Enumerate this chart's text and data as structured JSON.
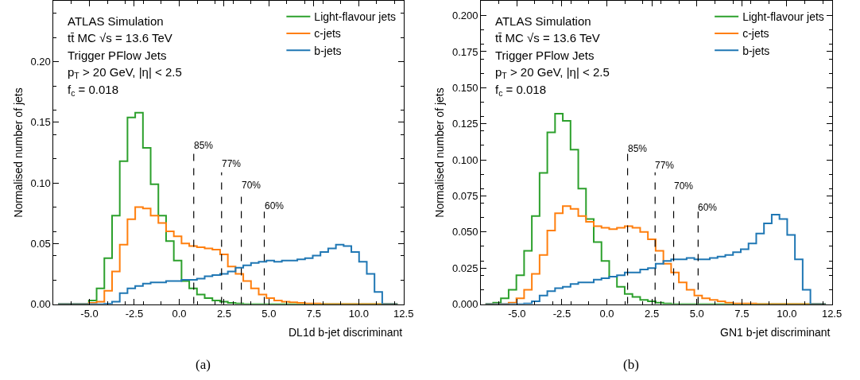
{
  "chart_data": [
    {
      "type": "histogram",
      "xlabel": "DL1d b-jet discriminant",
      "ylabel": "Normalised number of jets",
      "bins": [
        -6.75,
        -6.32,
        -5.89,
        -5.46,
        -5.03,
        -4.6,
        -4.17,
        -3.74,
        -3.31,
        -2.88,
        -2.45,
        -2.02,
        -1.59,
        -1.16,
        -0.73,
        -0.3,
        0.13,
        0.56,
        0.99,
        1.42,
        1.85,
        2.28,
        2.71,
        3.14,
        3.57,
        4.0,
        4.43,
        4.86,
        5.29,
        5.72,
        6.15,
        6.58,
        7.01,
        7.44,
        7.87,
        8.3,
        8.73,
        9.16,
        9.59,
        10.02,
        10.45,
        10.88,
        11.31,
        11.74,
        12.17
      ],
      "series": [
        {
          "name": "Light-flavour jets",
          "color": "#2ca02c",
          "values": [
            0,
            0,
            0,
            0,
            0.003,
            0.013,
            0.038,
            0.073,
            0.118,
            0.154,
            0.158,
            0.129,
            0.099,
            0.073,
            0.052,
            0.036,
            0.019,
            0.013,
            0.008,
            0.005,
            0.003,
            0.002,
            0.001,
            0.0005,
            0,
            0,
            0,
            0,
            0,
            0,
            0,
            0,
            0,
            0,
            0,
            0,
            0,
            0,
            0,
            0,
            0,
            0,
            0,
            0
          ]
        },
        {
          "name": "c-jets",
          "color": "#ff7f0e",
          "values": [
            0,
            0,
            0,
            0,
            0.001,
            0.002,
            0.011,
            0.027,
            0.049,
            0.07,
            0.08,
            0.079,
            0.073,
            0.067,
            0.06,
            0.056,
            0.05,
            0.048,
            0.047,
            0.046,
            0.045,
            0.041,
            0.031,
            0.025,
            0.019,
            0.013,
            0.008,
            0.005,
            0.003,
            0.002,
            0.0015,
            0.001,
            0.0005,
            0.0005,
            0,
            0,
            0,
            0,
            0,
            0,
            0,
            0,
            0,
            0
          ]
        },
        {
          "name": "b-jets",
          "color": "#1f77b4",
          "values": [
            0,
            0,
            0,
            0,
            0,
            0,
            0.0004,
            0.002,
            0.009,
            0.013,
            0.015,
            0.017,
            0.018,
            0.018,
            0.019,
            0.019,
            0.02,
            0.02,
            0.021,
            0.023,
            0.024,
            0.025,
            0.027,
            0.03,
            0.032,
            0.034,
            0.035,
            0.036,
            0.035,
            0.036,
            0.036,
            0.037,
            0.038,
            0.04,
            0.043,
            0.046,
            0.049,
            0.048,
            0.043,
            0.035,
            0.025,
            0.01,
            0,
            0
          ]
        }
      ],
      "xlim": [
        -7,
        12.5
      ],
      "ylim": [
        0,
        0.25
      ],
      "xticks": [
        {
          "value": -5,
          "label": "-5.0"
        },
        {
          "value": -2.5,
          "label": "-2.5"
        },
        {
          "value": 0,
          "label": "0.0"
        },
        {
          "value": 2.5,
          "label": "2.5"
        },
        {
          "value": 5,
          "label": "5.0"
        },
        {
          "value": 7.5,
          "label": "7.5"
        },
        {
          "value": 10,
          "label": "10.0"
        },
        {
          "value": 12.5,
          "label": "12.5"
        }
      ],
      "yticks": [
        {
          "value": 0,
          "label": "0.00"
        },
        0.05,
        {
          "value": 0.1,
          "label": "0.10"
        },
        0.15,
        {
          "value": 0.2,
          "label": "0.20"
        }
      ],
      "ref_lines": [
        {
          "axis": "x",
          "value": 0.81,
          "color": "#000000",
          "line_style": "dashed"
        },
        {
          "axis": "x",
          "value": 2.36,
          "color": "#000000",
          "line_style": "dashed"
        },
        {
          "axis": "x",
          "value": 3.46,
          "color": "#000000",
          "line_style": "dashed"
        },
        {
          "axis": "x",
          "value": 4.74,
          "color": "#000000",
          "line_style": "dashed"
        }
      ],
      "annotations": [
        "ATLAS Simulation",
        "tt̄ MC √s = 13.6 TeV",
        "Trigger PFlow Jets",
        "p$_{T}$ > 20 GeV, |η| < 2.5",
        "f$_{c}$ = 0.018",
        {
          "text": "85%",
          "x": 0.81,
          "y": 0.125
        },
        {
          "text": "77%",
          "x": 2.36,
          "y": 0.11
        },
        {
          "text": "70%",
          "x": 3.46,
          "y": 0.092
        },
        {
          "text": "60%",
          "x": 4.74,
          "y": 0.075
        },
        "(a)"
      ],
      "legend": "top right"
    },
    {
      "type": "histogram",
      "xlabel": "GN1 b-jet discriminant",
      "ylabel": "Normalised number of jets",
      "bins": [
        -6.75,
        -6.32,
        -5.89,
        -5.46,
        -5.03,
        -4.6,
        -4.17,
        -3.74,
        -3.31,
        -2.88,
        -2.45,
        -2.02,
        -1.59,
        -1.16,
        -0.73,
        -0.3,
        0.13,
        0.56,
        0.99,
        1.42,
        1.85,
        2.28,
        2.71,
        3.14,
        3.57,
        4.0,
        4.43,
        4.86,
        5.29,
        5.72,
        6.15,
        6.58,
        7.01,
        7.44,
        7.87,
        8.3,
        8.73,
        9.16,
        9.59,
        10.02,
        10.45,
        10.88,
        11.31,
        11.74,
        12.17
      ],
      "series": [
        {
          "name": "Light-flavour jets",
          "color": "#2ca02c",
          "values": [
            0,
            0.001,
            0.004,
            0.01,
            0.02,
            0.037,
            0.061,
            0.091,
            0.119,
            0.132,
            0.127,
            0.107,
            0.08,
            0.059,
            0.043,
            0.03,
            0.019,
            0.012,
            0.007,
            0.005,
            0.003,
            0.002,
            0.001,
            0.0005,
            0,
            0,
            0,
            0,
            0,
            0,
            0,
            0,
            0,
            0,
            0,
            0,
            0,
            0,
            0,
            0,
            0,
            0,
            0,
            0
          ]
        },
        {
          "name": "c-jets",
          "color": "#ff7f0e",
          "values": [
            0,
            0,
            0,
            0.001,
            0.004,
            0.01,
            0.021,
            0.034,
            0.051,
            0.063,
            0.068,
            0.066,
            0.061,
            0.057,
            0.054,
            0.053,
            0.052,
            0.053,
            0.054,
            0.053,
            0.05,
            0.045,
            0.037,
            0.028,
            0.022,
            0.015,
            0.01,
            0.006,
            0.004,
            0.003,
            0.002,
            0.001,
            0.0005,
            0.0005,
            0.0005,
            0,
            0,
            0,
            0,
            0,
            0,
            0,
            0,
            0
          ]
        },
        {
          "name": "b-jets",
          "color": "#1f77b4",
          "values": [
            0,
            0,
            0,
            0,
            0,
            0.0004,
            0.002,
            0.006,
            0.009,
            0.011,
            0.012,
            0.014,
            0.015,
            0.015,
            0.017,
            0.018,
            0.019,
            0.02,
            0.022,
            0.022,
            0.024,
            0.025,
            0.028,
            0.03,
            0.031,
            0.031,
            0.032,
            0.031,
            0.031,
            0.032,
            0.033,
            0.034,
            0.036,
            0.038,
            0.042,
            0.049,
            0.056,
            0.062,
            0.059,
            0.048,
            0.031,
            0.01,
            0,
            0
          ]
        }
      ],
      "xlim": [
        -7,
        12.5
      ],
      "ylim": [
        0,
        0.21
      ],
      "xticks": [
        {
          "value": -5,
          "label": "-5.0"
        },
        {
          "value": -2.5,
          "label": "-2.5"
        },
        {
          "value": 0,
          "label": "0.0"
        },
        {
          "value": 2.5,
          "label": "2.5"
        },
        {
          "value": 5,
          "label": "5.0"
        },
        {
          "value": 7.5,
          "label": "7.5"
        },
        {
          "value": 10,
          "label": "10.0"
        },
        {
          "value": 12.5,
          "label": "12.5"
        }
      ],
      "yticks": [
        {
          "value": 0,
          "label": "0.000"
        },
        0.025,
        {
          "value": 0.05,
          "label": "0.050"
        },
        0.075,
        {
          "value": 0.1,
          "label": "0.100"
        },
        0.125,
        {
          "value": 0.15,
          "label": "0.150"
        },
        0.175,
        {
          "value": 0.2,
          "label": "0.200"
        }
      ],
      "ref_lines": [
        {
          "axis": "x",
          "value": 1.15,
          "color": "#000000",
          "line_style": "dashed"
        },
        {
          "axis": "x",
          "value": 2.68,
          "color": "#000000",
          "line_style": "dashed"
        },
        {
          "axis": "x",
          "value": 3.71,
          "color": "#000000",
          "line_style": "dashed"
        },
        {
          "axis": "x",
          "value": 5.07,
          "color": "#000000",
          "line_style": "dashed"
        }
      ],
      "annotations": [
        "ATLAS Simulation",
        "tt̄ MC √s = 13.6 TeV",
        "Trigger PFlow Jets",
        "p$_{T}$ > 20 GeV, |η| < 2.5",
        "f$_{c}$ = 0.018",
        {
          "text": "85%",
          "x": 1.15,
          "y": 0.103
        },
        {
          "text": "77%",
          "x": 2.68,
          "y": 0.091
        },
        {
          "text": "70%",
          "x": 3.71,
          "y": 0.077
        },
        {
          "text": "60%",
          "x": 5.07,
          "y": 0.062
        },
        "(b)"
      ],
      "legend": "top right"
    }
  ]
}
